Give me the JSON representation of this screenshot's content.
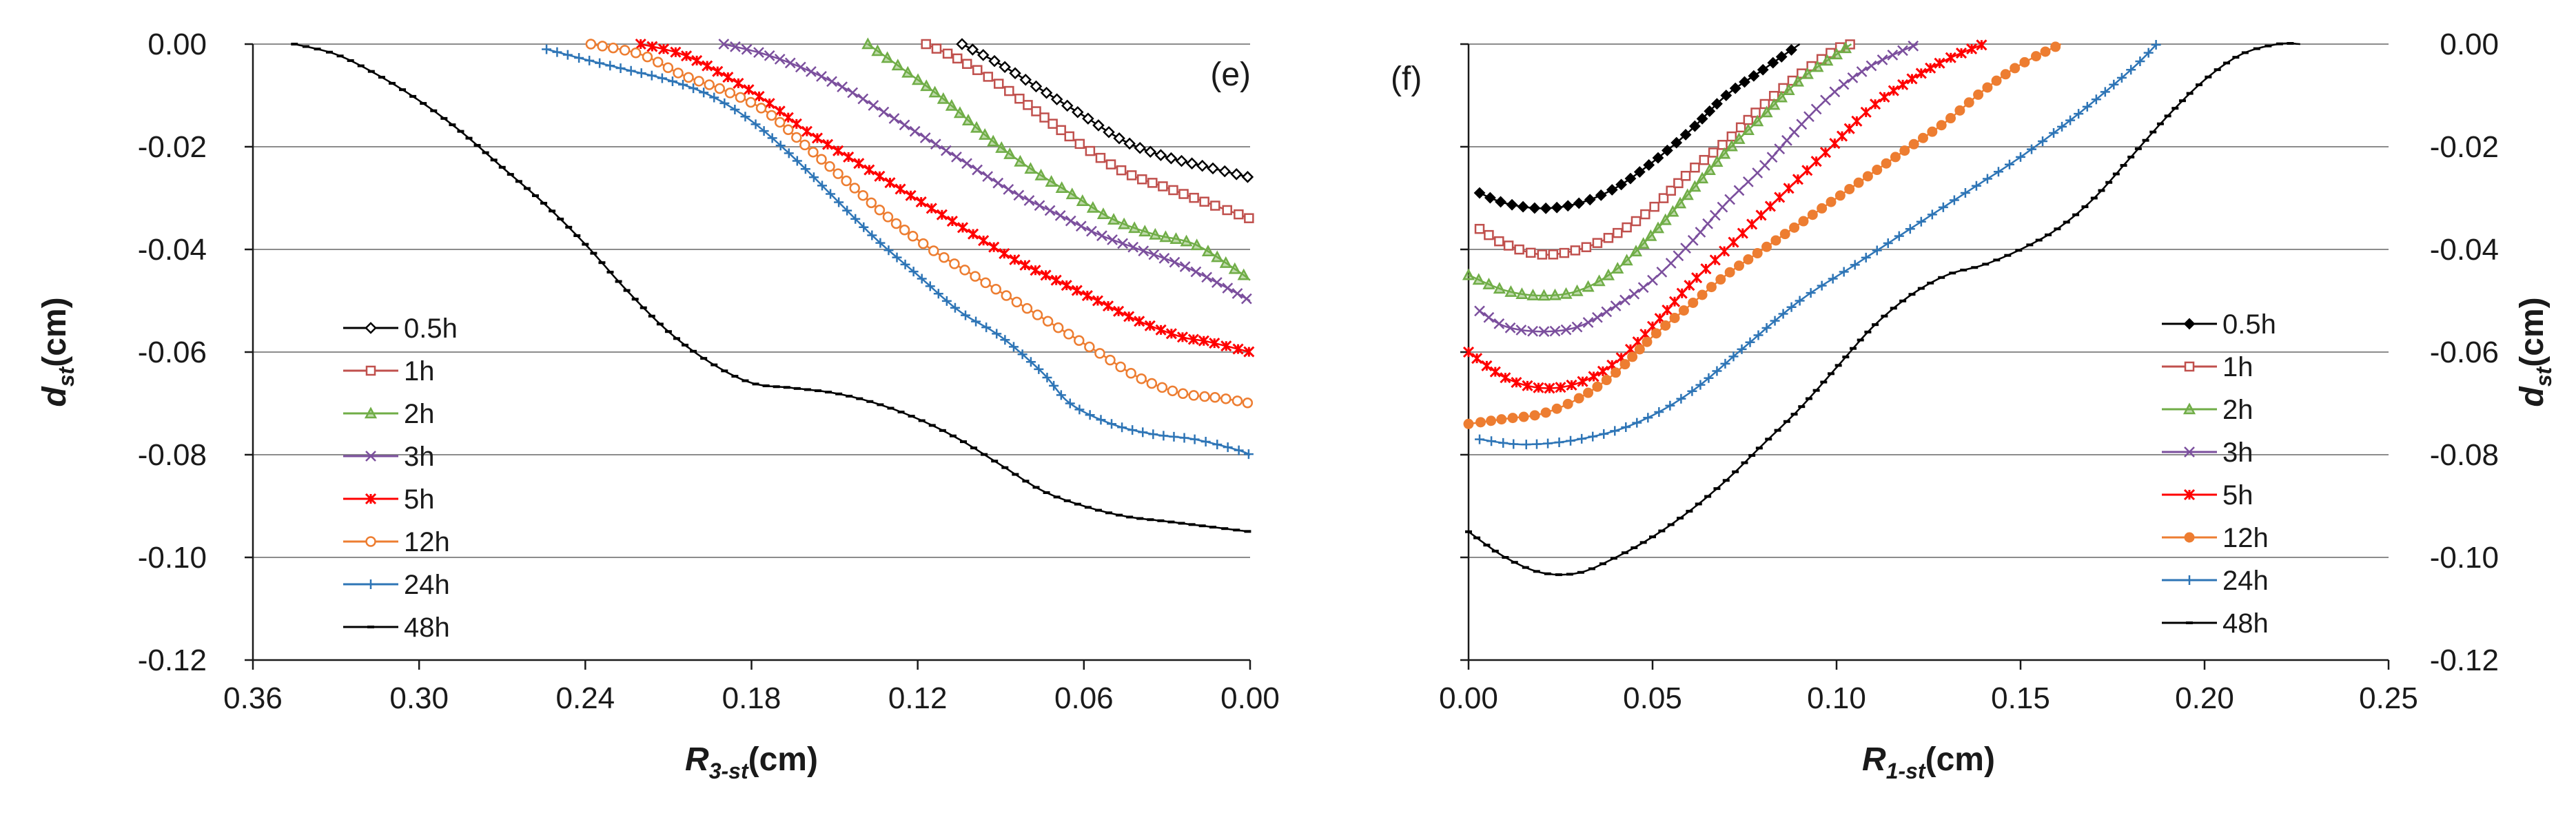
{
  "chart_data": [
    {
      "type": "line",
      "panel": "(e)",
      "xlabel": "R3-st(cm)",
      "xlabel_main": "R",
      "xlabel_sub": "3-st",
      "xlabel_unit": "(cm)",
      "ylabel": "dst(cm)",
      "ylabel_main": "d",
      "ylabel_sub": "st",
      "ylabel_unit": "(cm)",
      "xlim": [
        0.36,
        0.0
      ],
      "x_reversed": true,
      "ylim": [
        -0.12,
        0.0
      ],
      "x_ticks": [
        0.36,
        0.3,
        0.24,
        0.18,
        0.12,
        0.06,
        0.0
      ],
      "x_tick_labels": [
        "0.36",
        "0.30",
        "0.24",
        "0.18",
        "0.12",
        "0.06",
        "0.00"
      ],
      "y_ticks": [
        0.0,
        -0.02,
        -0.04,
        -0.06,
        -0.08,
        -0.1,
        -0.12
      ],
      "y_tick_labels": [
        "0.00",
        "-0.02",
        "-0.04",
        "-0.06",
        "-0.08",
        "-0.10",
        "-0.12"
      ],
      "y_axis_side": "left",
      "grid": "horizontal",
      "legend_position": "bottom-left",
      "series": [
        {
          "name": "0.5h",
          "color": "#000000",
          "marker": "diamond-open",
          "x": [
            0.104,
            0.09,
            0.075,
            0.06,
            0.045,
            0.03,
            0.015,
            0.0
          ],
          "y": [
            0.0,
            -0.004,
            -0.009,
            -0.014,
            -0.019,
            -0.022,
            -0.024,
            -0.026
          ]
        },
        {
          "name": "1h",
          "color": "#c0504d",
          "marker": "square-open",
          "x": [
            0.117,
            0.105,
            0.09,
            0.075,
            0.06,
            0.045,
            0.03,
            0.015,
            0.0
          ],
          "y": [
            0.0,
            -0.003,
            -0.008,
            -0.014,
            -0.02,
            -0.025,
            -0.028,
            -0.031,
            -0.034
          ]
        },
        {
          "name": "2h",
          "color": "#70ad47",
          "marker": "triangle",
          "x": [
            0.138,
            0.125,
            0.11,
            0.095,
            0.08,
            0.065,
            0.05,
            0.035,
            0.02,
            0.005,
            0.0
          ],
          "y": [
            0.0,
            -0.005,
            -0.011,
            -0.018,
            -0.024,
            -0.029,
            -0.034,
            -0.037,
            -0.039,
            -0.044,
            -0.046
          ]
        },
        {
          "name": "3h",
          "color": "#7b4f9d",
          "marker": "x",
          "x": [
            0.19,
            0.175,
            0.16,
            0.145,
            0.13,
            0.115,
            0.1,
            0.085,
            0.07,
            0.055,
            0.04,
            0.025,
            0.01,
            0.0
          ],
          "y": [
            0.0,
            -0.002,
            -0.005,
            -0.009,
            -0.014,
            -0.019,
            -0.024,
            -0.029,
            -0.033,
            -0.037,
            -0.04,
            -0.043,
            -0.047,
            -0.05
          ]
        },
        {
          "name": "5h",
          "color": "#ff0000",
          "marker": "star",
          "x": [
            0.22,
            0.205,
            0.19,
            0.175,
            0.16,
            0.145,
            0.13,
            0.115,
            0.1,
            0.085,
            0.07,
            0.055,
            0.04,
            0.025,
            0.015,
            0.0
          ],
          "y": [
            0.0,
            -0.002,
            -0.006,
            -0.011,
            -0.017,
            -0.022,
            -0.027,
            -0.032,
            -0.037,
            -0.042,
            -0.046,
            -0.05,
            -0.054,
            -0.057,
            -0.058,
            -0.06
          ]
        },
        {
          "name": "12h",
          "color": "#ed7d31",
          "marker": "circle-open",
          "x": [
            0.238,
            0.22,
            0.205,
            0.19,
            0.175,
            0.16,
            0.145,
            0.13,
            0.115,
            0.1,
            0.085,
            0.07,
            0.055,
            0.04,
            0.025,
            0.01,
            0.0
          ],
          "y": [
            0.0,
            -0.002,
            -0.006,
            -0.009,
            -0.013,
            -0.02,
            -0.027,
            -0.034,
            -0.04,
            -0.045,
            -0.05,
            -0.055,
            -0.06,
            -0.065,
            -0.068,
            -0.069,
            -0.07
          ]
        },
        {
          "name": "24h",
          "color": "#2e75b6",
          "marker": "plus",
          "x": [
            0.254,
            0.24,
            0.225,
            0.21,
            0.195,
            0.18,
            0.165,
            0.15,
            0.135,
            0.12,
            0.105,
            0.09,
            0.075,
            0.065,
            0.05,
            0.035,
            0.02,
            0.005,
            0.0
          ],
          "y": [
            -0.001,
            -0.003,
            -0.005,
            -0.007,
            -0.01,
            -0.015,
            -0.022,
            -0.03,
            -0.038,
            -0.045,
            -0.052,
            -0.057,
            -0.064,
            -0.07,
            -0.074,
            -0.076,
            -0.077,
            -0.079,
            -0.08
          ]
        },
        {
          "name": "48h",
          "color": "#000000",
          "marker": "dash",
          "x": [
            0.345,
            0.33,
            0.315,
            0.3,
            0.285,
            0.27,
            0.255,
            0.24,
            0.225,
            0.21,
            0.195,
            0.18,
            0.165,
            0.15,
            0.135,
            0.12,
            0.105,
            0.09,
            0.075,
            0.06,
            0.045,
            0.03,
            0.015,
            0.0
          ],
          "y": [
            0.0,
            -0.002,
            -0.006,
            -0.011,
            -0.017,
            -0.024,
            -0.031,
            -0.039,
            -0.048,
            -0.056,
            -0.062,
            -0.066,
            -0.067,
            -0.068,
            -0.07,
            -0.073,
            -0.077,
            -0.082,
            -0.087,
            -0.09,
            -0.092,
            -0.093,
            -0.094,
            -0.095
          ]
        }
      ]
    },
    {
      "type": "line",
      "panel": "(f)",
      "xlabel": "R1-st(cm)",
      "xlabel_main": "R",
      "xlabel_sub": "1-st",
      "xlabel_unit": "(cm)",
      "ylabel": "dst(cm)",
      "ylabel_main": "d",
      "ylabel_sub": "st",
      "ylabel_unit": "(cm)",
      "xlim": [
        0.0,
        0.25
      ],
      "x_reversed": false,
      "ylim": [
        -0.12,
        0.0
      ],
      "x_ticks": [
        0.0,
        0.05,
        0.1,
        0.15,
        0.2,
        0.25
      ],
      "x_tick_labels": [
        "0.00",
        "0.05",
        "0.10",
        "0.15",
        "0.20",
        "0.25"
      ],
      "y_ticks": [
        0.0,
        -0.02,
        -0.04,
        -0.06,
        -0.08,
        -0.1,
        -0.12
      ],
      "y_tick_labels": [
        "0.00",
        "-0.02",
        "-0.04",
        "-0.06",
        "-0.08",
        "-0.10",
        "-0.12"
      ],
      "y_axis_side": "right",
      "grid": "horizontal",
      "legend_position": "bottom-right",
      "series": [
        {
          "name": "0.5h",
          "color": "#000000",
          "marker": "diamond-filled",
          "x": [
            0.003,
            0.01,
            0.02,
            0.03,
            0.04,
            0.05,
            0.06,
            0.07,
            0.08,
            0.09
          ],
          "y": [
            -0.029,
            -0.031,
            -0.032,
            -0.031,
            -0.028,
            -0.023,
            -0.017,
            -0.01,
            -0.005,
            0.0
          ]
        },
        {
          "name": "1h",
          "color": "#c0504d",
          "marker": "square-open",
          "x": [
            0.003,
            0.01,
            0.02,
            0.03,
            0.04,
            0.05,
            0.06,
            0.07,
            0.08,
            0.09,
            0.1,
            0.104
          ],
          "y": [
            -0.036,
            -0.039,
            -0.041,
            -0.04,
            -0.037,
            -0.032,
            -0.025,
            -0.019,
            -0.012,
            -0.006,
            -0.001,
            0.0
          ]
        },
        {
          "name": "2h",
          "color": "#70ad47",
          "marker": "triangle",
          "x": [
            0.0,
            0.01,
            0.02,
            0.03,
            0.04,
            0.05,
            0.06,
            0.07,
            0.08,
            0.09,
            0.1,
            0.104
          ],
          "y": [
            -0.045,
            -0.048,
            -0.049,
            -0.048,
            -0.044,
            -0.037,
            -0.029,
            -0.021,
            -0.014,
            -0.007,
            -0.002,
            0.0
          ]
        },
        {
          "name": "3h",
          "color": "#7b4f9d",
          "marker": "x",
          "x": [
            0.003,
            0.01,
            0.02,
            0.03,
            0.04,
            0.05,
            0.06,
            0.07,
            0.08,
            0.09,
            0.1,
            0.11,
            0.122
          ],
          "y": [
            -0.052,
            -0.055,
            -0.056,
            -0.055,
            -0.051,
            -0.046,
            -0.039,
            -0.031,
            -0.024,
            -0.016,
            -0.009,
            -0.004,
            0.0
          ]
        },
        {
          "name": "5h",
          "color": "#ff0000",
          "marker": "star",
          "x": [
            0.0,
            0.01,
            0.02,
            0.03,
            0.04,
            0.05,
            0.06,
            0.07,
            0.08,
            0.09,
            0.1,
            0.11,
            0.12,
            0.13,
            0.14
          ],
          "y": [
            -0.06,
            -0.065,
            -0.067,
            -0.066,
            -0.062,
            -0.055,
            -0.047,
            -0.04,
            -0.033,
            -0.026,
            -0.019,
            -0.012,
            -0.007,
            -0.003,
            0.0
          ]
        },
        {
          "name": "12h",
          "color": "#ed7d31",
          "marker": "circle-filled",
          "x": [
            0.0,
            0.01,
            0.02,
            0.03,
            0.04,
            0.05,
            0.06,
            0.07,
            0.08,
            0.09,
            0.1,
            0.11,
            0.12,
            0.13,
            0.14,
            0.15,
            0.161
          ],
          "y": [
            -0.074,
            -0.073,
            -0.072,
            -0.069,
            -0.064,
            -0.057,
            -0.051,
            -0.045,
            -0.04,
            -0.035,
            -0.03,
            -0.025,
            -0.02,
            -0.015,
            -0.009,
            -0.004,
            0.0
          ]
        },
        {
          "name": "24h",
          "color": "#2e75b6",
          "marker": "plus",
          "x": [
            0.003,
            0.015,
            0.03,
            0.045,
            0.06,
            0.075,
            0.09,
            0.105,
            0.12,
            0.135,
            0.15,
            0.165,
            0.18,
            0.187
          ],
          "y": [
            -0.077,
            -0.078,
            -0.077,
            -0.074,
            -0.068,
            -0.059,
            -0.05,
            -0.043,
            -0.036,
            -0.029,
            -0.022,
            -0.014,
            -0.005,
            0.0
          ]
        },
        {
          "name": "48h",
          "color": "#000000",
          "marker": "dash",
          "x": [
            0.0,
            0.01,
            0.02,
            0.03,
            0.04,
            0.05,
            0.06,
            0.07,
            0.08,
            0.09,
            0.1,
            0.11,
            0.12,
            0.13,
            0.14,
            0.15,
            0.16,
            0.17,
            0.18,
            0.19,
            0.2,
            0.21,
            0.22,
            0.226
          ],
          "y": [
            -0.095,
            -0.1,
            -0.103,
            -0.103,
            -0.1,
            -0.096,
            -0.091,
            -0.085,
            -0.078,
            -0.071,
            -0.063,
            -0.055,
            -0.049,
            -0.045,
            -0.043,
            -0.04,
            -0.036,
            -0.03,
            -0.022,
            -0.014,
            -0.007,
            -0.002,
            0.0,
            0.0
          ]
        }
      ]
    }
  ]
}
